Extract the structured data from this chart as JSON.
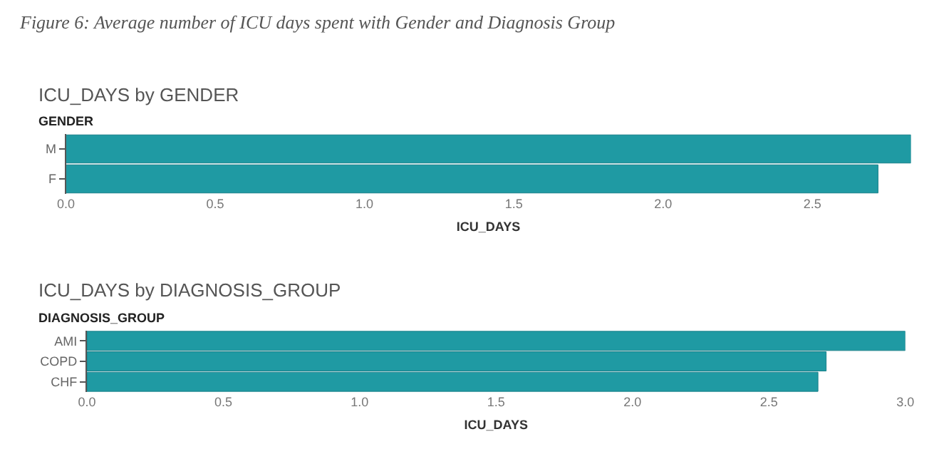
{
  "chart_data": [
    {
      "type": "bar",
      "orientation": "horizontal",
      "title": "Figure 6: Average number of ICU days spent with Gender and Diagnosis Group",
      "subtitle": "ICU_DAYS by GENDER",
      "ylabel": "GENDER",
      "xlabel": "ICU_DAYS",
      "categories": [
        "M",
        "F"
      ],
      "values": [
        2.83,
        2.72
      ],
      "color": "#1f9aa3",
      "xlim": [
        0,
        2.83
      ],
      "xticks": [
        {
          "value": 0,
          "label": "0.0"
        },
        {
          "value": 0.5,
          "label": "0.5"
        },
        {
          "value": 1,
          "label": "1.0"
        },
        {
          "value": 1.5,
          "label": "1.5"
        },
        {
          "value": 2,
          "label": "2.0"
        },
        {
          "value": 2.5,
          "label": "2.5"
        }
      ]
    },
    {
      "type": "bar",
      "orientation": "horizontal",
      "title": "ICU_DAYS by DIAGNOSIS_GROUP",
      "ylabel": "DIAGNOSIS_GROUP",
      "xlabel": "ICU_DAYS",
      "categories": [
        "AMI",
        "COPD",
        "CHF"
      ],
      "values": [
        3.0,
        2.71,
        2.68
      ],
      "color": "#1f9aa3",
      "xlim": [
        0,
        3.0
      ],
      "xticks": [
        {
          "value": 0,
          "label": "0.0"
        },
        {
          "value": 0.5,
          "label": "0.5"
        },
        {
          "value": 1,
          "label": "1.0"
        },
        {
          "value": 1.5,
          "label": "1.5"
        },
        {
          "value": 2,
          "label": "2.0"
        },
        {
          "value": 2.5,
          "label": "2.5"
        },
        {
          "value": 3,
          "label": "3.0"
        }
      ]
    }
  ]
}
